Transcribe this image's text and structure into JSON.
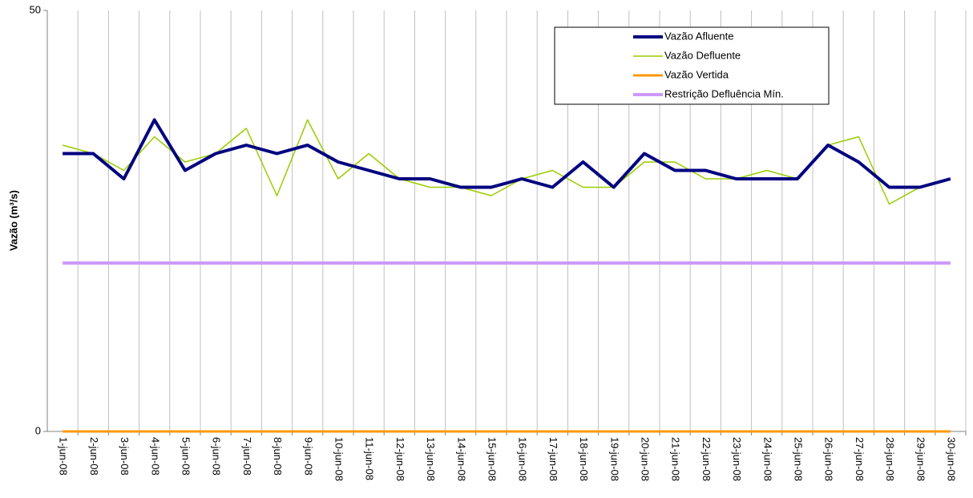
{
  "chart_data": {
    "type": "line",
    "y_label": "Vazão (m³/s)",
    "categories": [
      "1-jun-08",
      "2-jun-08",
      "3-jun-08",
      "4-jun-08",
      "5-jun-08",
      "6-jun-08",
      "7-jun-08",
      "8-jun-08",
      "9-jun-08",
      "10-jun-08",
      "11-jun-08",
      "12-jun-08",
      "13-jun-08",
      "14-jun-08",
      "15-jun-08",
      "16-jun-08",
      "17-jun-08",
      "18-jun-08",
      "19-jun-08",
      "20-jun-08",
      "21-jun-08",
      "22-jun-08",
      "23-jun-08",
      "24-jun-08",
      "25-jun-08",
      "26-jun-08",
      "27-jun-08",
      "28-jun-08",
      "29-jun-08",
      "30-jun-08"
    ],
    "series": [
      {
        "name": "Vazão Afluente",
        "color": "#000080",
        "width": 4,
        "values": [
          33,
          33,
          30,
          37,
          31,
          33,
          34,
          33,
          34,
          32,
          31,
          30,
          30,
          29,
          29,
          30,
          29,
          32,
          29,
          33,
          31,
          31,
          30,
          30,
          30,
          34,
          32,
          29,
          29,
          30
        ]
      },
      {
        "name": "Vazão Defluente",
        "color": "#99cc00",
        "width": 1.5,
        "values": [
          34,
          33,
          31,
          35,
          32,
          33,
          36,
          28,
          37,
          30,
          33,
          30,
          29,
          29,
          28,
          30,
          31,
          29,
          29,
          32,
          32,
          30,
          30,
          31,
          30,
          34,
          35,
          27,
          29,
          30
        ]
      },
      {
        "name": "Vazão Vertida",
        "color": "#ff9900",
        "width": 3,
        "values": [
          0,
          0,
          0,
          0,
          0,
          0,
          0,
          0,
          0,
          0,
          0,
          0,
          0,
          0,
          0,
          0,
          0,
          0,
          0,
          0,
          0,
          0,
          0,
          0,
          0,
          0,
          0,
          0,
          0,
          0
        ]
      },
      {
        "name": "Restrição Defluência Mín.",
        "color": "#cc99ff",
        "width": 4,
        "values": [
          20,
          20,
          20,
          20,
          20,
          20,
          20,
          20,
          20,
          20,
          20,
          20,
          20,
          20,
          20,
          20,
          20,
          20,
          20,
          20,
          20,
          20,
          20,
          20,
          20,
          20,
          20,
          20,
          20,
          20
        ]
      }
    ],
    "ylim": [
      0,
      50
    ],
    "yticks": [
      0,
      50
    ],
    "grid": "x"
  }
}
